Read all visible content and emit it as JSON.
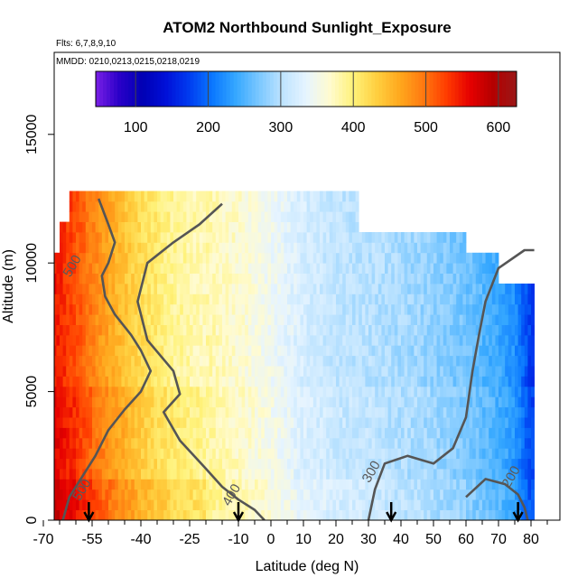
{
  "chart_data": {
    "type": "heatmap",
    "title": "ATOM2 Northbound Sunlight_Exposure",
    "flights_note": "Flts: 6,7,8,9,10",
    "dates_note": "MMDD: 0210,0213,0215,0218,0219",
    "xlabel": "Latitude (deg N)",
    "ylabel": "Altitude (m)",
    "xlim": [
      -70,
      85
    ],
    "ylim": [
      0,
      18000
    ],
    "x_ticks": [
      -70,
      -55,
      -40,
      -25,
      -10,
      0,
      10,
      20,
      30,
      40,
      50,
      60,
      70,
      80
    ],
    "y_ticks": [
      0,
      5000,
      10000,
      15000
    ],
    "colorbar": {
      "range": [
        45,
        625
      ],
      "ticks": [
        100,
        200,
        300,
        400,
        500,
        600
      ],
      "colors": [
        "#7a1fe6",
        "#2a00c8",
        "#0000b4",
        "#0010d8",
        "#003cf0",
        "#0a78ff",
        "#36a8ff",
        "#7cc8ff",
        "#bfe4ff",
        "#e6f4ff",
        "#fffbd0",
        "#fff27a",
        "#ffd040",
        "#ffa81e",
        "#ff7a10",
        "#ff3c00",
        "#e60000",
        "#b40000",
        "#9a1818"
      ]
    },
    "field": {
      "lat_range": [
        -67,
        81
      ],
      "alt_range": [
        0,
        12500
      ],
      "anchors": [
        {
          "lat": -67,
          "value": 560
        },
        {
          "lat": -60,
          "value": 530
        },
        {
          "lat": -50,
          "value": 475
        },
        {
          "lat": -40,
          "value": 430
        },
        {
          "lat": -30,
          "value": 400
        },
        {
          "lat": -20,
          "value": 385
        },
        {
          "lat": -10,
          "value": 370
        },
        {
          "lat": 0,
          "value": 350
        },
        {
          "lat": 10,
          "value": 325
        },
        {
          "lat": 20,
          "value": 310
        },
        {
          "lat": 30,
          "value": 305
        },
        {
          "lat": 40,
          "value": 295
        },
        {
          "lat": 50,
          "value": 285
        },
        {
          "lat": 60,
          "value": 270
        },
        {
          "lat": 70,
          "value": 245
        },
        {
          "lat": 75,
          "value": 225
        },
        {
          "lat": 80,
          "value": 175
        }
      ]
    },
    "contours": [
      {
        "level": 500,
        "points": [
          [
            -53,
            12500
          ],
          [
            -50,
            11500
          ],
          [
            -48,
            10800
          ],
          [
            -50,
            10000
          ],
          [
            -52,
            9500
          ],
          [
            -51,
            8700
          ],
          [
            -48,
            8000
          ],
          [
            -43,
            7200
          ],
          [
            -40,
            6600
          ],
          [
            -37,
            5800
          ],
          [
            -40,
            5000
          ],
          [
            -45,
            4300
          ],
          [
            -50,
            3500
          ],
          [
            -54,
            2500
          ],
          [
            -58,
            1700
          ],
          [
            -62,
            900
          ],
          [
            -64,
            0
          ]
        ]
      },
      {
        "level": 400,
        "points": [
          [
            -15,
            12300
          ],
          [
            -22,
            11500
          ],
          [
            -30,
            10800
          ],
          [
            -38,
            10000
          ],
          [
            -41,
            8500
          ],
          [
            -38,
            7000
          ],
          [
            -30,
            5800
          ],
          [
            -28,
            4900
          ],
          [
            -33,
            4200
          ],
          [
            -28,
            3100
          ],
          [
            -20,
            2000
          ],
          [
            -15,
            1300
          ],
          [
            -10,
            800
          ],
          [
            -5,
            400
          ],
          [
            -2,
            0
          ]
        ]
      },
      {
        "level": 300,
        "points": [
          [
            30,
            0
          ],
          [
            32,
            1200
          ],
          [
            35,
            2200
          ],
          [
            42,
            2500
          ],
          [
            50,
            2200
          ],
          [
            56,
            2800
          ],
          [
            60,
            4000
          ],
          [
            62,
            5800
          ],
          [
            64,
            7200
          ],
          [
            66,
            8500
          ],
          [
            70,
            9800
          ],
          [
            78,
            10500
          ],
          [
            81,
            10500
          ]
        ]
      },
      {
        "level": 200,
        "points": [
          [
            60,
            900
          ],
          [
            66,
            1600
          ],
          [
            72,
            1400
          ],
          [
            76,
            1000
          ],
          [
            78,
            500
          ],
          [
            79,
            0
          ]
        ]
      }
    ],
    "contour_labels": [
      {
        "text": "500",
        "lat": -60,
        "alt": 9800
      },
      {
        "text": "500",
        "lat": -57,
        "alt": 1100
      },
      {
        "text": "400",
        "lat": -11,
        "alt": 900
      },
      {
        "text": "300",
        "lat": 32,
        "alt": 1800
      },
      {
        "text": "200",
        "lat": 75,
        "alt": 1600
      }
    ],
    "markers": [
      {
        "lat": -56
      },
      {
        "lat": -10
      },
      {
        "lat": 37
      },
      {
        "lat": 76
      }
    ]
  }
}
